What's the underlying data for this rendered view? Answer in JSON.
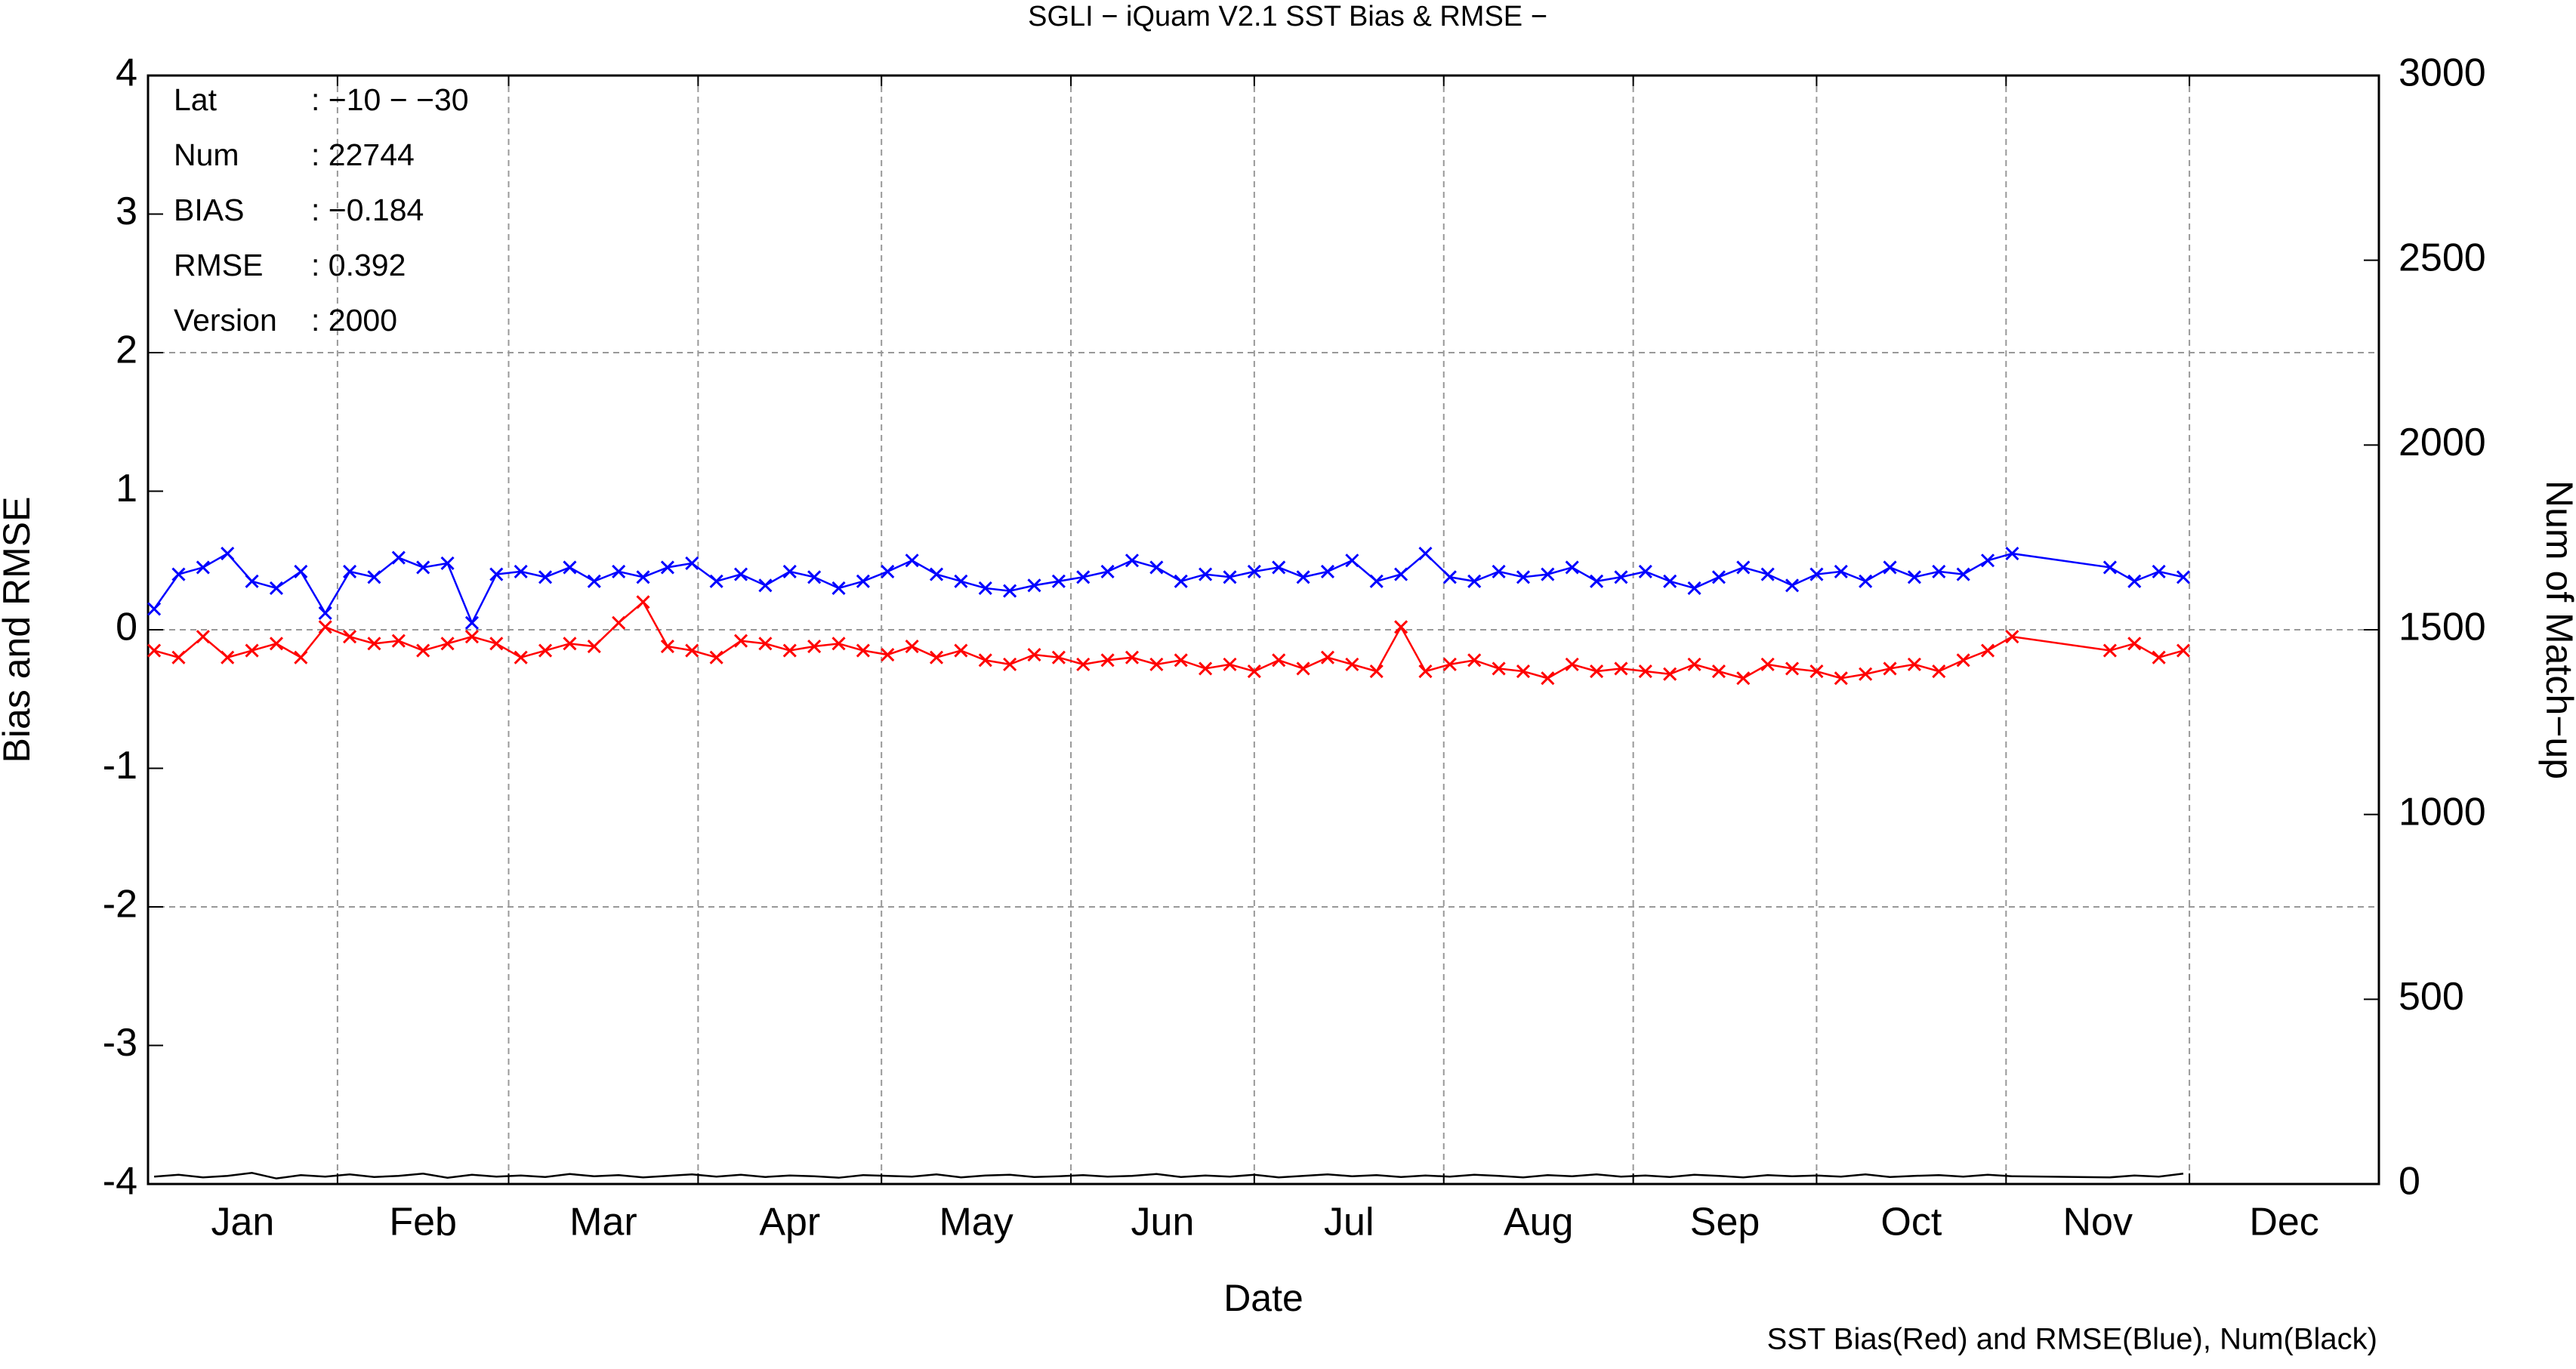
{
  "chart_data": {
    "type": "line",
    "title": "SGLI − iQuam V2.1 SST Bias & RMSE  −",
    "xlabel": "Date",
    "ylabel": "Bias and RMSE",
    "y2label": "Num of Match−up",
    "footnote": "SST Bias(Red) and RMSE(Blue), Num(Black)",
    "info": [
      [
        "Lat",
        ": −10 − −30"
      ],
      [
        "Num",
        ": 22744"
      ],
      [
        "BIAS",
        ": −0.184"
      ],
      [
        "RMSE",
        ": 0.392"
      ],
      [
        "Version",
        ": 2000"
      ]
    ],
    "xlim": [
      0,
      365
    ],
    "xticks": [
      {
        "value": 15.5,
        "label": "Jan"
      },
      {
        "value": 45,
        "label": "Feb"
      },
      {
        "value": 74.5,
        "label": "Mar"
      },
      {
        "value": 105,
        "label": "Apr"
      },
      {
        "value": 135.5,
        "label": "May"
      },
      {
        "value": 166,
        "label": "Jun"
      },
      {
        "value": 196.5,
        "label": "Jul"
      },
      {
        "value": 227.5,
        "label": "Aug"
      },
      {
        "value": 258,
        "label": "Sep"
      },
      {
        "value": 288.5,
        "label": "Oct"
      },
      {
        "value": 319,
        "label": "Nov"
      },
      {
        "value": 349.5,
        "label": "Dec"
      }
    ],
    "xgrid": [
      31,
      59,
      90,
      120,
      151,
      181,
      212,
      243,
      273,
      304,
      334
    ],
    "ylim": [
      -4,
      4
    ],
    "yticks": [
      -4,
      -3,
      -2,
      -1,
      0,
      1,
      2,
      3,
      4
    ],
    "ygrid": [
      -2,
      0,
      2
    ],
    "y2lim": [
      0,
      3000
    ],
    "y2ticks": [
      0,
      500,
      1000,
      1500,
      2000,
      2500,
      3000
    ],
    "x": [
      1,
      5,
      9,
      13,
      17,
      21,
      25,
      29,
      33,
      37,
      41,
      45,
      49,
      53,
      57,
      61,
      65,
      69,
      73,
      77,
      81,
      85,
      89,
      93,
      97,
      101,
      105,
      109,
      113,
      117,
      121,
      125,
      129,
      133,
      137,
      141,
      145,
      149,
      153,
      157,
      161,
      165,
      169,
      173,
      177,
      181,
      185,
      189,
      193,
      197,
      201,
      205,
      209,
      213,
      217,
      221,
      225,
      229,
      233,
      237,
      241,
      245,
      249,
      253,
      257,
      261,
      265,
      269,
      273,
      277,
      281,
      285,
      289,
      293,
      297,
      301,
      305,
      321,
      325,
      329,
      333
    ],
    "series": [
      {
        "name": "SST Bias",
        "color": "#ff0000",
        "values": [
          -0.15,
          -0.2,
          -0.05,
          -0.2,
          -0.15,
          -0.1,
          -0.2,
          0.02,
          -0.05,
          -0.1,
          -0.08,
          -0.15,
          -0.1,
          -0.05,
          -0.1,
          -0.2,
          -0.15,
          -0.1,
          -0.12,
          0.05,
          0.2,
          -0.12,
          -0.15,
          -0.2,
          -0.08,
          -0.1,
          -0.15,
          -0.12,
          -0.1,
          -0.15,
          -0.18,
          -0.12,
          -0.2,
          -0.15,
          -0.22,
          -0.25,
          -0.18,
          -0.2,
          -0.25,
          -0.22,
          -0.2,
          -0.25,
          -0.22,
          -0.28,
          -0.25,
          -0.3,
          -0.22,
          -0.28,
          -0.2,
          -0.25,
          -0.3,
          0.02,
          -0.3,
          -0.25,
          -0.22,
          -0.28,
          -0.3,
          -0.35,
          -0.25,
          -0.3,
          -0.28,
          -0.3,
          -0.32,
          -0.25,
          -0.3,
          -0.35,
          -0.25,
          -0.28,
          -0.3,
          -0.35,
          -0.32,
          -0.28,
          -0.25,
          -0.3,
          -0.22,
          -0.15,
          -0.05,
          -0.15,
          -0.1,
          -0.2,
          -0.15
        ]
      },
      {
        "name": "RMSE",
        "color": "#0000ff",
        "values": [
          0.15,
          0.4,
          0.45,
          0.55,
          0.35,
          0.3,
          0.42,
          0.12,
          0.42,
          0.38,
          0.52,
          0.45,
          0.48,
          0.05,
          0.4,
          0.42,
          0.38,
          0.45,
          0.35,
          0.42,
          0.38,
          0.45,
          0.48,
          0.35,
          0.4,
          0.32,
          0.42,
          0.38,
          0.3,
          0.35,
          0.42,
          0.5,
          0.4,
          0.35,
          0.3,
          0.28,
          0.32,
          0.35,
          0.38,
          0.42,
          0.5,
          0.45,
          0.35,
          0.4,
          0.38,
          0.42,
          0.45,
          0.38,
          0.42,
          0.5,
          0.35,
          0.4,
          0.55,
          0.38,
          0.35,
          0.42,
          0.38,
          0.4,
          0.45,
          0.35,
          0.38,
          0.42,
          0.35,
          0.3,
          0.38,
          0.45,
          0.4,
          0.32,
          0.4,
          0.42,
          0.35,
          0.45,
          0.38,
          0.42,
          0.4,
          0.5,
          0.55,
          0.45,
          0.35,
          0.42,
          0.38
        ]
      },
      {
        "name": "Num",
        "color": "#000000",
        "axis": "y2",
        "values": [
          20,
          25,
          18,
          22,
          30,
          15,
          24,
          20,
          26,
          19,
          22,
          28,
          17,
          25,
          20,
          23,
          19,
          27,
          21,
          24,
          18,
          22,
          26,
          20,
          25,
          19,
          23,
          21,
          17,
          24,
          22,
          20,
          26,
          18,
          23,
          25,
          19,
          21,
          24,
          20,
          22,
          27,
          19,
          23,
          20,
          25,
          18,
          22,
          26,
          21,
          24,
          19,
          23,
          20,
          25,
          22,
          18,
          24,
          21,
          26,
          20,
          23,
          19,
          25,
          22,
          18,
          24,
          21,
          23,
          20,
          26,
          19,
          22,
          24,
          20,
          25,
          21,
          18,
          23,
          20,
          28
        ]
      }
    ]
  }
}
